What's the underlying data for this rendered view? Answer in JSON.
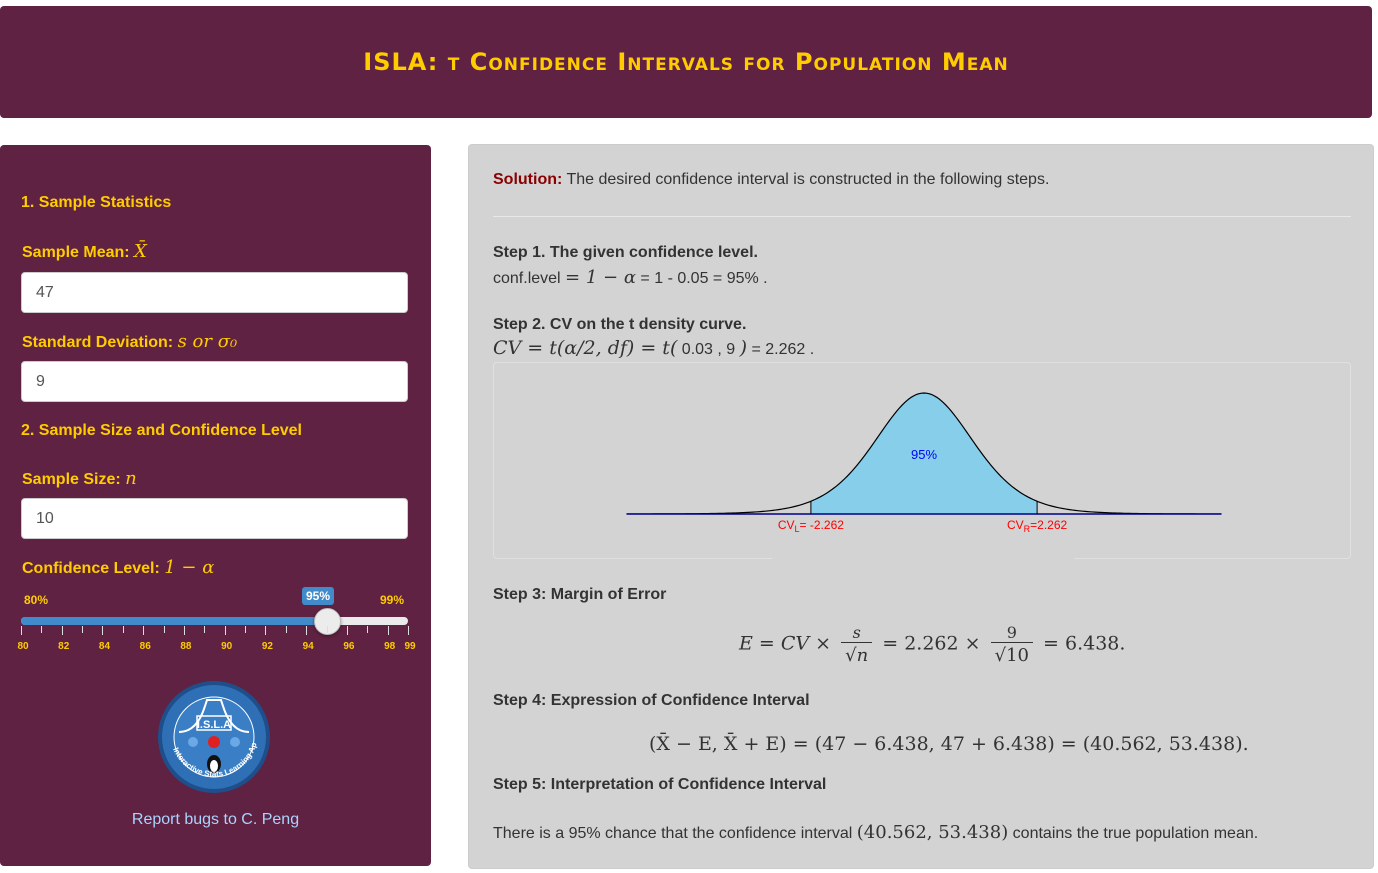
{
  "app": {
    "title": "ISLA: t Confidence Intervals for Population Mean"
  },
  "sidebar": {
    "section1": "1. Sample Statistics",
    "sample_mean_label": "Sample Mean: ",
    "sample_mean_symbol": "X̄",
    "sample_mean_value": "47",
    "sd_label": "Standard Deviation: ",
    "sd_symbol": "s or σ₀",
    "sd_value": "9",
    "section2": "2. Sample Size and Confidence Level",
    "n_label": "Sample Size: ",
    "n_symbol": "n",
    "n_value": "10",
    "conf_label": "Confidence Level: ",
    "conf_symbol": "1 − α",
    "slider": {
      "min_label": "80%",
      "max_label": "99%",
      "value_label": "95%",
      "min": 80,
      "max": 99,
      "value": 95,
      "tick_labels": [
        "80",
        "82",
        "84",
        "86",
        "88",
        "90",
        "92",
        "94",
        "96",
        "98",
        "99"
      ]
    },
    "logo_text": "I.S.L.A",
    "logo_ring_text": "Interactive Stats Learning Apps",
    "report_link": "Report bugs to C. Peng"
  },
  "main": {
    "solution_label": "Solution:",
    "solution_text": " The desired confidence interval is constructed in the following steps.",
    "step1_title": "Step 1. The given confidence level.",
    "step1_text_a": "conf.level ",
    "step1_text_b": "= 1 − α",
    "step1_text_c": " = 1 - 0.05 = 95% .",
    "step2_title": "Step 2. CV on the t density curve.",
    "step2_formula": "CV = t(α/2, df) = t(",
    "step2_args": " 0.03 , 9 ",
    "step2_close": ")",
    "step2_result": " = 2.262 .",
    "curve": {
      "center_label": "95%",
      "cv_left": "CVL= -2.262",
      "cv_left_main": "CV",
      "cv_left_sub": "L",
      "cv_left_val": "= -2.262",
      "cv_right_main": "CV",
      "cv_right_sub": "R",
      "cv_right_val": "=2.262",
      "cv_value": 2.262,
      "df": 9
    },
    "step3_title": "Step 3: Margin of Error",
    "step3_lhs": "E = CV × ",
    "step3_frac1_num": "s",
    "step3_frac1_den": "√n",
    "step3_mid": " = 2.262 × ",
    "step3_frac2_num": "9",
    "step3_frac2_den": "√10",
    "step3_rhs": " = 6.438.",
    "step4_title": "Step 4: Expression of Confidence Interval",
    "step4_formula": "(X̄ − E, X̄ + E) = (47 − 6.438, 47 + 6.438) = (40.562, 53.438).",
    "step5_title": "Step 5: Interpretation of Confidence Interval",
    "step5_a": "There is a 95% chance that the confidence interval ",
    "step5_b": "(40.562, 53.438)",
    "step5_c": " contains the true population mean."
  },
  "colors": {
    "header_bg": "#5f2242",
    "accent": "#ffcc00",
    "curve_fill": "#87ceeb",
    "cv_label": "#ff0000",
    "center_label": "#0000ff",
    "slider": "#428bca"
  }
}
